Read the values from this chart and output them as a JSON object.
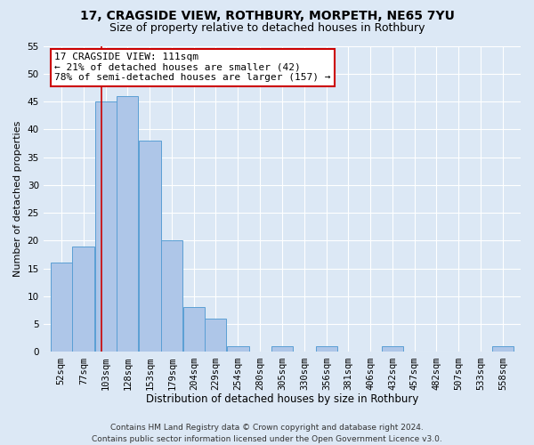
{
  "title1": "17, CRAGSIDE VIEW, ROTHBURY, MORPETH, NE65 7YU",
  "title2": "Size of property relative to detached houses in Rothbury",
  "xlabel": "Distribution of detached houses by size in Rothbury",
  "ylabel": "Number of detached properties",
  "bin_labels": [
    "52sqm",
    "77sqm",
    "103sqm",
    "128sqm",
    "153sqm",
    "179sqm",
    "204sqm",
    "229sqm",
    "254sqm",
    "280sqm",
    "305sqm",
    "330sqm",
    "356sqm",
    "381sqm",
    "406sqm",
    "432sqm",
    "457sqm",
    "482sqm",
    "507sqm",
    "533sqm",
    "558sqm"
  ],
  "bin_edges": [
    52,
    77,
    103,
    128,
    153,
    179,
    204,
    229,
    254,
    280,
    305,
    330,
    356,
    381,
    406,
    432,
    457,
    482,
    507,
    533,
    558,
    583
  ],
  "bar_values": [
    16,
    19,
    45,
    46,
    38,
    20,
    8,
    6,
    1,
    0,
    1,
    0,
    1,
    0,
    0,
    1,
    0,
    0,
    0,
    0,
    1
  ],
  "bar_color": "#aec6e8",
  "bar_edge_color": "#5a9fd4",
  "background_color": "#dce8f5",
  "fig_background_color": "#dce8f5",
  "grid_color": "#ffffff",
  "property_size": 111,
  "red_line_color": "#cc0000",
  "annotation_text": "17 CRAGSIDE VIEW: 111sqm\n← 21% of detached houses are smaller (42)\n78% of semi-detached houses are larger (157) →",
  "annotation_box_color": "#ffffff",
  "annotation_box_edge_color": "#cc0000",
  "ylim": [
    0,
    55
  ],
  "yticks": [
    0,
    5,
    10,
    15,
    20,
    25,
    30,
    35,
    40,
    45,
    50,
    55
  ],
  "footer1": "Contains HM Land Registry data © Crown copyright and database right 2024.",
  "footer2": "Contains public sector information licensed under the Open Government Licence v3.0.",
  "title1_fontsize": 10,
  "title2_fontsize": 9,
  "xlabel_fontsize": 8.5,
  "ylabel_fontsize": 8,
  "tick_fontsize": 7.5,
  "annotation_fontsize": 8,
  "footer_fontsize": 6.5
}
